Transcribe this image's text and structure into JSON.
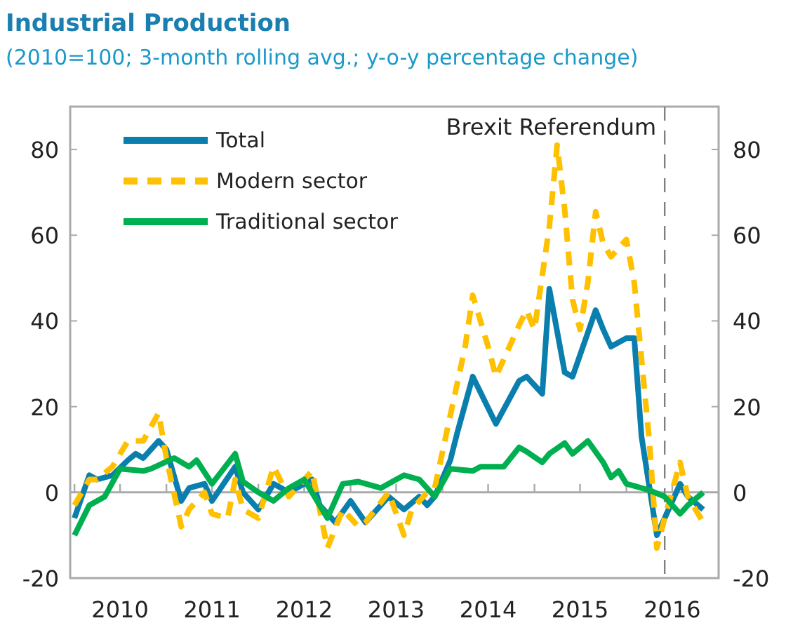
{
  "chart_data": {
    "type": "line",
    "title": "Industrial Production",
    "subtitle": "(2010=100; 3-month rolling avg.; y-o-y percentage change)",
    "xlim": [
      "2009-12-15",
      "2017-01-01"
    ],
    "xticks": [
      {
        "value": "2010-01",
        "label": null
      },
      {
        "value": "2010-07",
        "label": "2010"
      },
      {
        "value": "2011-01",
        "label": null
      },
      {
        "value": "2011-07",
        "label": "2011"
      },
      {
        "value": "2012-01",
        "label": null
      },
      {
        "value": "2012-07",
        "label": "2012"
      },
      {
        "value": "2013-01",
        "label": null
      },
      {
        "value": "2013-07",
        "label": "2013"
      },
      {
        "value": "2014-01",
        "label": null
      },
      {
        "value": "2014-07",
        "label": "2014"
      },
      {
        "value": "2015-01",
        "label": null
      },
      {
        "value": "2015-07",
        "label": "2015"
      },
      {
        "value": "2016-01",
        "label": null
      },
      {
        "value": "2016-07",
        "label": "2016"
      }
    ],
    "ylim": [
      -20,
      90
    ],
    "yticks": [
      -20,
      0,
      20,
      40,
      60,
      80
    ],
    "y2lim": [
      -20,
      90
    ],
    "y2ticks": [
      -20,
      0,
      20,
      40,
      60,
      80
    ],
    "legend": "top left",
    "line_style": "solid",
    "marker": "none",
    "ref_lines": [
      {
        "axis": "x",
        "value": "2016-06",
        "label": "Brexit Referendum",
        "color": "#808080",
        "line_style": "dashed"
      }
    ],
    "series": [
      {
        "name": "Total",
        "color": "#0a7fae",
        "x": [
          "2010-01",
          "2010-03",
          "2010-04",
          "2010-06",
          "2010-08",
          "2010-09",
          "2010-10",
          "2010-12",
          "2011-01",
          "2011-03",
          "2011-04",
          "2011-06",
          "2011-07",
          "2011-10",
          "2011-11",
          "2012-01",
          "2012-03",
          "2012-05",
          "2012-08",
          "2012-09",
          "2012-11",
          "2013-01",
          "2013-03",
          "2013-06",
          "2013-08",
          "2013-10",
          "2013-11",
          "2013-12",
          "2014-02",
          "2014-03",
          "2014-05",
          "2014-08",
          "2014-11",
          "2014-12",
          "2015-02",
          "2015-03",
          "2015-05",
          "2015-06",
          "2015-09",
          "2015-10",
          "2015-11",
          "2016-01",
          "2016-02",
          "2016-03",
          "2016-05",
          "2016-06",
          "2016-08",
          "2016-09",
          "2016-11"
        ],
        "values": [
          -6,
          4,
          3,
          4,
          7.5,
          9,
          8,
          12,
          10,
          -2,
          1,
          2,
          -2,
          6,
          0,
          -4,
          2,
          0,
          3,
          -3,
          -7,
          -2,
          -7,
          -1,
          -4,
          -1,
          -3,
          -1,
          7.5,
          14,
          27,
          16,
          26,
          27,
          23,
          47.5,
          28,
          27,
          42.5,
          38,
          34,
          36,
          36,
          13,
          -10,
          -6,
          2,
          -1,
          -4
        ]
      },
      {
        "name": "Modern sector",
        "color": "#ffc000",
        "line_style": "dashed",
        "x": [
          "2010-01",
          "2010-03",
          "2010-04",
          "2010-06",
          "2010-08",
          "2010-10",
          "2010-12",
          "2011-01",
          "2011-03",
          "2011-04",
          "2011-06",
          "2011-07",
          "2011-09",
          "2011-10",
          "2011-11",
          "2012-01",
          "2012-03",
          "2012-05",
          "2012-08",
          "2012-10",
          "2012-12",
          "2013-02",
          "2013-03",
          "2013-06",
          "2013-08",
          "2013-09",
          "2013-11",
          "2013-12",
          "2014-02",
          "2014-04",
          "2014-05",
          "2014-07",
          "2014-08",
          "2014-11",
          "2014-12",
          "2015-01",
          "2015-03",
          "2015-04",
          "2015-05",
          "2015-06",
          "2015-07",
          "2015-08",
          "2015-09",
          "2015-10",
          "2015-11",
          "2016-01",
          "2016-02",
          "2016-04",
          "2016-05",
          "2016-06",
          "2016-08",
          "2016-09",
          "2016-11"
        ],
        "values": [
          -3,
          3,
          3,
          6,
          12,
          12,
          18.5,
          8,
          -8,
          -4,
          0,
          -5,
          -6,
          3,
          -4,
          -6,
          6,
          -1,
          5,
          -13,
          -4,
          -8,
          -7,
          0,
          -10,
          -4,
          0,
          1,
          18,
          34,
          46,
          34,
          27,
          39,
          42.5,
          38,
          62,
          81,
          66,
          45,
          38,
          49,
          65.5,
          58,
          55,
          59,
          49,
          12,
          -13,
          -6,
          7,
          -1,
          -7
        ]
      },
      {
        "name": "Traditional sector",
        "color": "#00b050",
        "x": [
          "2010-01",
          "2010-03",
          "2010-05",
          "2010-07",
          "2010-10",
          "2010-11",
          "2011-02",
          "2011-04",
          "2011-05",
          "2011-07",
          "2011-10",
          "2011-11",
          "2012-01",
          "2012-03",
          "2012-05",
          "2012-07",
          "2012-10",
          "2012-12",
          "2013-02",
          "2013-05",
          "2013-07",
          "2013-08",
          "2013-10",
          "2013-12",
          "2014-02",
          "2014-05",
          "2014-06",
          "2014-09",
          "2014-11",
          "2014-12",
          "2015-02",
          "2015-03",
          "2015-05",
          "2015-06",
          "2015-08",
          "2015-10",
          "2015-11",
          "2015-12",
          "2016-01",
          "2016-02",
          "2016-04",
          "2016-06",
          "2016-08",
          "2016-09",
          "2016-11"
        ],
        "values": [
          -10,
          -3,
          -1,
          5.5,
          5,
          5.5,
          8,
          6,
          7.5,
          2,
          9,
          2.5,
          0,
          -2,
          1,
          3,
          -6,
          2,
          2.5,
          1,
          3,
          4,
          3,
          -1,
          5.5,
          5,
          6,
          6,
          10.5,
          9.5,
          7,
          9,
          11.5,
          9,
          12,
          7,
          3.5,
          5,
          2,
          1.5,
          0.5,
          -1,
          -5,
          -3,
          0
        ]
      }
    ]
  }
}
